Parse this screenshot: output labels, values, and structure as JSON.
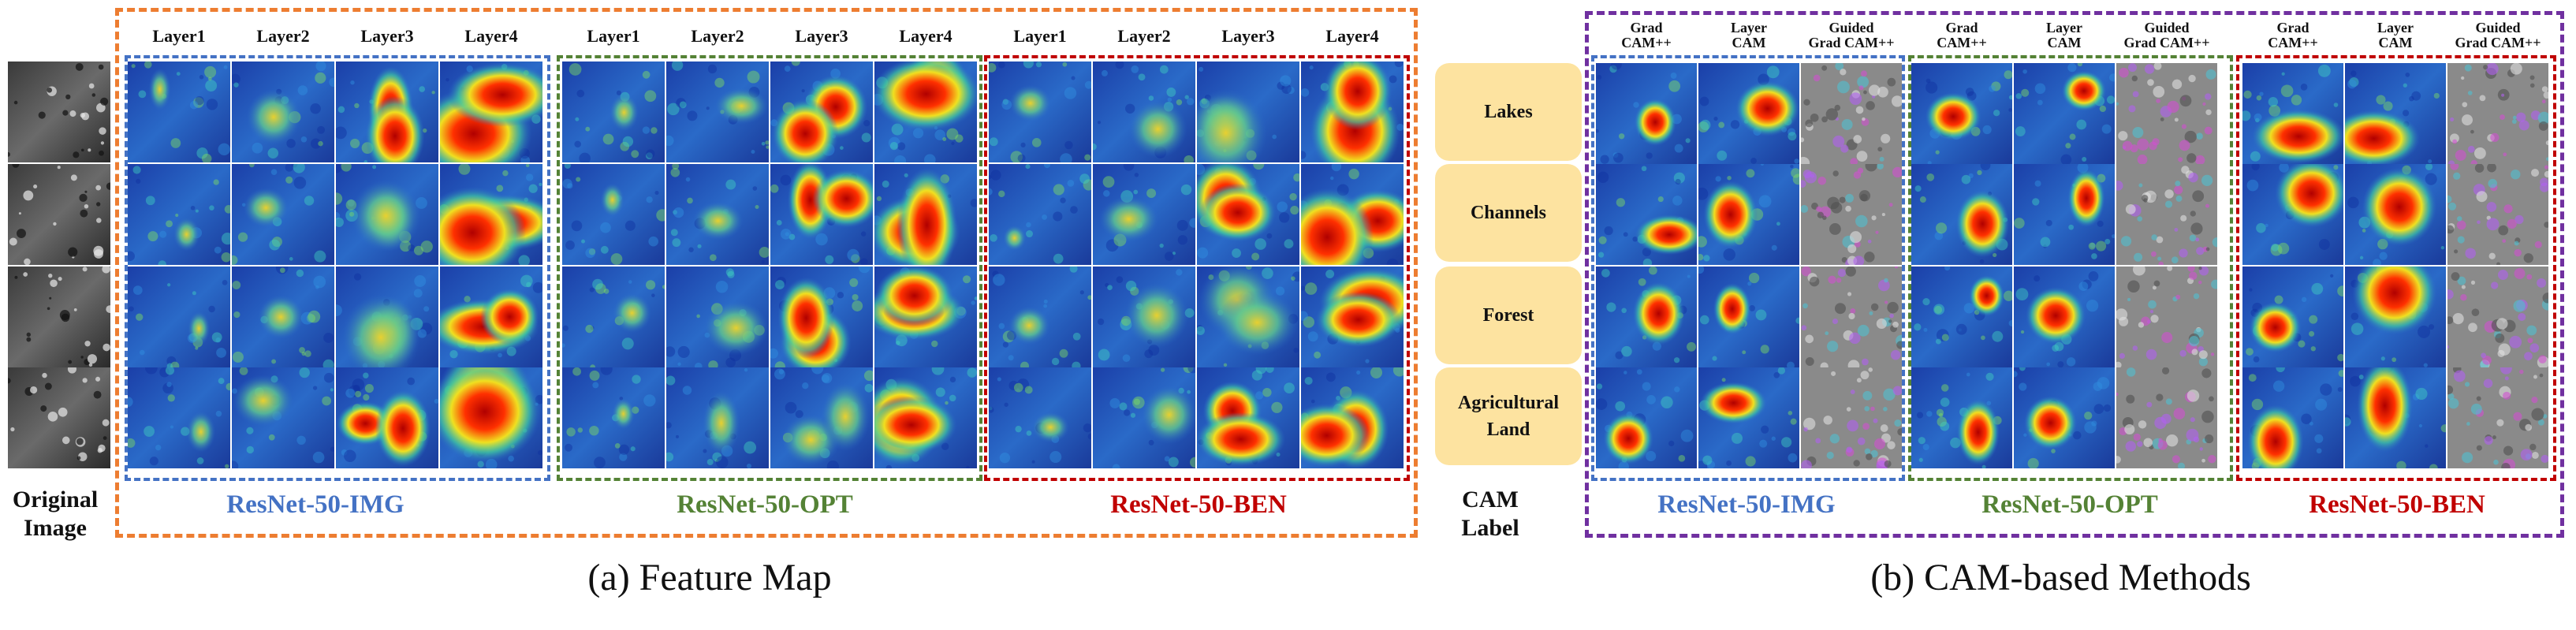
{
  "panel_a": {
    "caption": "(a) Feature Map",
    "original_label": "Original\nImage",
    "layer_headers": [
      "Layer1",
      "Layer2",
      "Layer3",
      "Layer4"
    ],
    "models": [
      {
        "name": "ResNet-50-IMG",
        "color": "#4472c4"
      },
      {
        "name": "ResNet-50-OPT",
        "color": "#548235"
      },
      {
        "name": "ResNet-50-BEN",
        "color": "#c00000"
      }
    ],
    "frame_color": "#ed7d31"
  },
  "panel_b": {
    "caption": "(b) CAM-based Methods",
    "cam_label": "CAM\nLabel",
    "method_headers": [
      "Grad\nCAM++",
      "Layer\nCAM",
      "Guided\nGrad CAM++"
    ],
    "labels": [
      "Lakes",
      "Channels",
      "Forest",
      "Agricultural\nLand"
    ],
    "models": [
      {
        "name": "ResNet-50-IMG",
        "color": "#4472c4"
      },
      {
        "name": "ResNet-50-OPT",
        "color": "#548235"
      },
      {
        "name": "ResNet-50-BEN",
        "color": "#c00000"
      }
    ],
    "frame_color": "#7030a0",
    "label_fill": "#fde3a0"
  }
}
